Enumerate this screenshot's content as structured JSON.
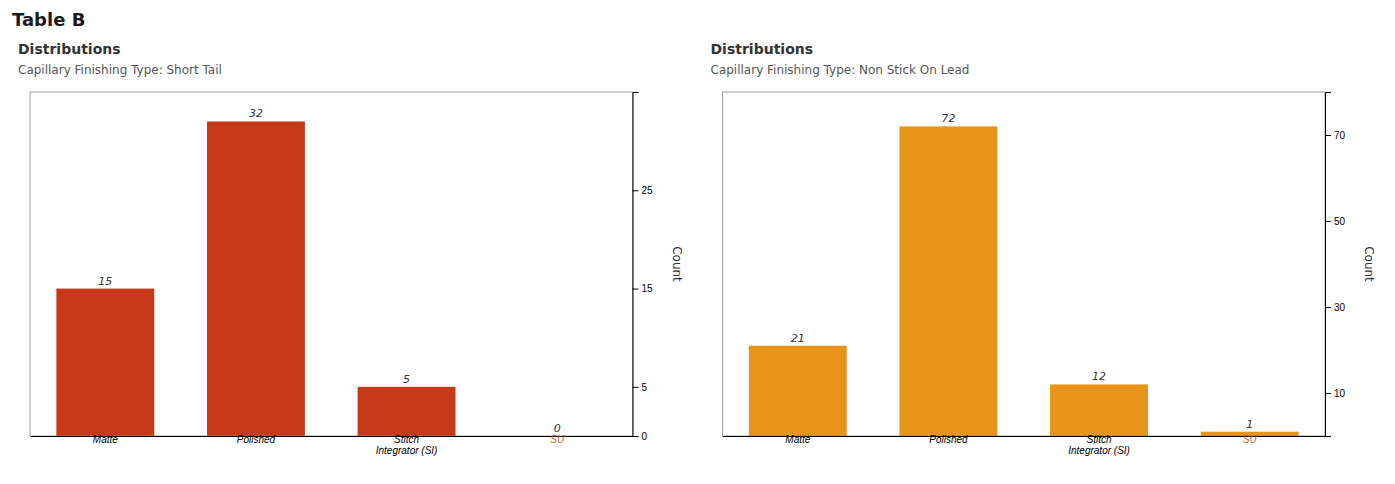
{
  "title": "Table B",
  "chart_data": [
    {
      "type": "bar",
      "title": "Distributions",
      "subtitle": "Capillary Finishing Type: Short Tail",
      "categories": [
        "Matte",
        "Polished",
        "Stitch\nIntegrator (SI)",
        "SU"
      ],
      "values": [
        15,
        32,
        5,
        0
      ],
      "color": "#c8391a",
      "ylabel": "Count",
      "ylim": [
        0,
        35
      ],
      "yticks": [
        0,
        5,
        15,
        25
      ],
      "grid": false,
      "data_labels": true
    },
    {
      "type": "bar",
      "title": "Distributions",
      "subtitle": "Capillary Finishing Type: Non Stick On Lead",
      "categories": [
        "Matte",
        "Polished",
        "Stitch\nIntegrator (SI)",
        "SU"
      ],
      "values": [
        21,
        72,
        12,
        1
      ],
      "color": "#e8941a",
      "ylabel": "Count",
      "ylim": [
        0,
        80
      ],
      "yticks": [
        10,
        30,
        50,
        70
      ],
      "grid": false,
      "data_labels": true
    }
  ]
}
